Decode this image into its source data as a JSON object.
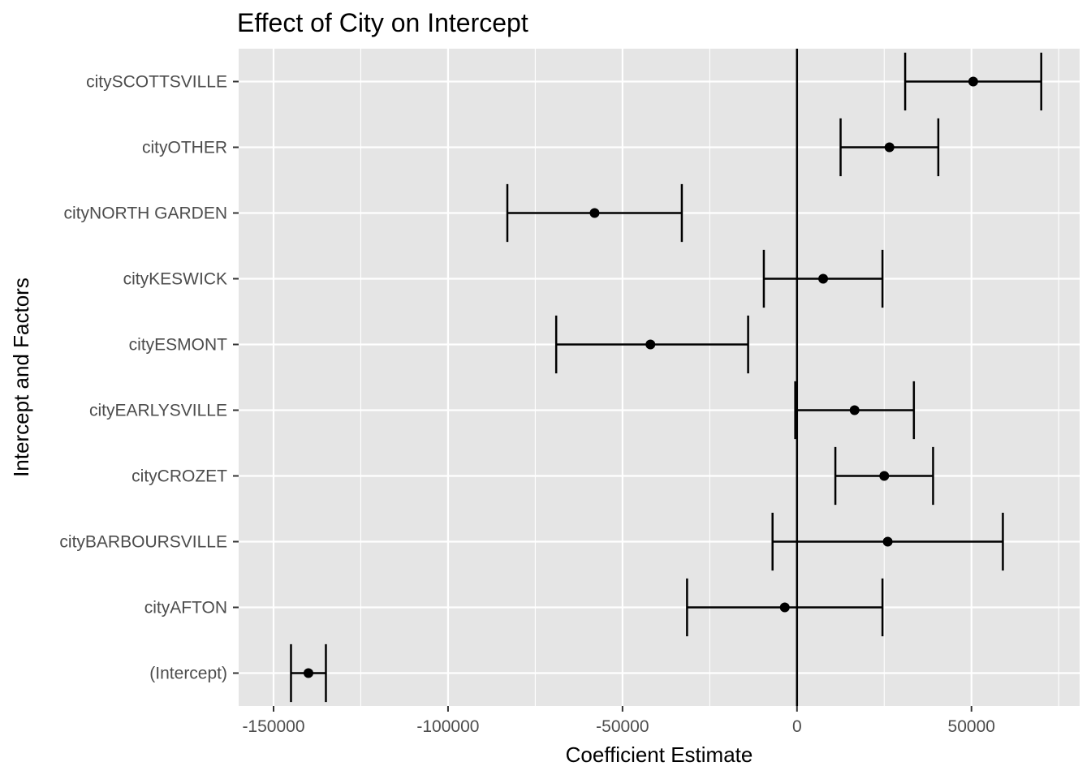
{
  "chart_data": {
    "type": "errorbar",
    "title": "Effect of City on Intercept",
    "xlabel": "Coefficient Estimate",
    "ylabel": "Intercept and Factors",
    "xlim": [
      -160000,
      81000
    ],
    "x_ticks": [
      -150000,
      -100000,
      -50000,
      0,
      50000
    ],
    "x_tick_labels": [
      "-150000",
      "-100000",
      "-50000",
      "0",
      "50000"
    ],
    "reference_line_x": 0,
    "grid": true,
    "legend": "none",
    "colors": {
      "panel": "#e5e5e5",
      "grid": "#ffffff",
      "marks": "#000000",
      "tick_text": "#4d4d4d"
    },
    "categories": [
      "(Intercept)",
      "cityAFTON",
      "cityBARBOURSVILLE",
      "cityCROZET",
      "cityEARLYSVILLE",
      "cityESMONT",
      "cityKESWICK",
      "cityNORTH GARDEN",
      "cityOTHER",
      "citySCOTTSVILLE"
    ],
    "estimates": [
      -140000,
      -3500,
      26000,
      25000,
      16500,
      -42000,
      7500,
      -58000,
      26500,
      50500
    ],
    "lower": [
      -145000,
      -31500,
      -7000,
      11000,
      -500,
      -69000,
      -9500,
      -83000,
      12500,
      31000
    ],
    "upper": [
      -135000,
      24500,
      59000,
      39000,
      33500,
      -14000,
      24500,
      -33000,
      40500,
      70000
    ]
  }
}
